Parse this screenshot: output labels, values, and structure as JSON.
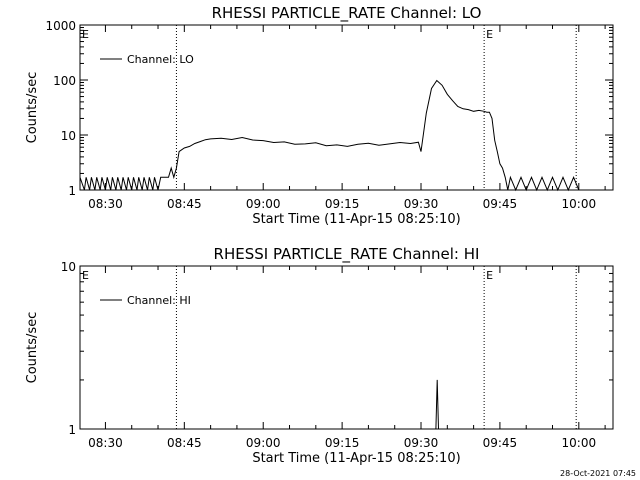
{
  "footer": {
    "timestamp": "28-Oct-2021 07:45"
  },
  "chart_data": [
    {
      "type": "line",
      "title": "RHESSI PARTICLE_RATE Channel: LO",
      "xlabel": "Start Time (11-Apr-15 08:25:10)",
      "ylabel": "Counts/sec",
      "yscale": "log",
      "xlim": [
        "08:25:10",
        "10:06:30"
      ],
      "ylim": [
        1,
        1000
      ],
      "xticks": [
        "08:30",
        "08:45",
        "09:00",
        "09:15",
        "09:30",
        "09:45",
        "10:00"
      ],
      "yticks": [
        "1",
        "10",
        "100",
        "1000"
      ],
      "legend": {
        "label": "Channel: LO",
        "placement": "top-left"
      },
      "vlines": [
        "08:43:30",
        "09:42:00",
        "09:59:30"
      ],
      "markers": [
        {
          "x": "08:25:10",
          "label": "E"
        },
        {
          "x": "09:42:00",
          "label": "E"
        }
      ],
      "series": [
        {
          "name": "Channel: LO",
          "color": "#000000",
          "x": [
            "08:25:10",
            "08:26:00",
            "08:26:20",
            "08:27:00",
            "08:27:20",
            "08:28:00",
            "08:28:20",
            "08:29:00",
            "08:29:20",
            "08:30:00",
            "08:30:20",
            "08:31:00",
            "08:31:20",
            "08:32:00",
            "08:32:20",
            "08:33:00",
            "08:33:20",
            "08:34:00",
            "08:34:20",
            "08:35:00",
            "08:35:20",
            "08:36:00",
            "08:36:20",
            "08:37:00",
            "08:37:20",
            "08:38:00",
            "08:38:20",
            "08:39:00",
            "08:39:20",
            "08:40:00",
            "08:40:30",
            "08:41:00",
            "08:41:30",
            "08:42:00",
            "08:42:30",
            "08:43:00",
            "08:43:30",
            "08:44:00",
            "08:45:00",
            "08:46:00",
            "08:47:00",
            "08:48:00",
            "08:49:00",
            "08:50:00",
            "08:52:00",
            "08:54:00",
            "08:56:00",
            "08:58:00",
            "09:00:00",
            "09:02:00",
            "09:04:00",
            "09:06:00",
            "09:08:00",
            "09:10:00",
            "09:12:00",
            "09:14:00",
            "09:16:00",
            "09:18:00",
            "09:20:00",
            "09:22:00",
            "09:24:00",
            "09:26:00",
            "09:28:00",
            "09:29:30",
            "09:30:00",
            "09:31:00",
            "09:32:00",
            "09:33:00",
            "09:34:00",
            "09:35:00",
            "09:36:00",
            "09:37:00",
            "09:38:00",
            "09:39:00",
            "09:40:00",
            "09:41:00",
            "09:42:00",
            "09:42:30",
            "09:43:00",
            "09:43:30",
            "09:44:00",
            "09:44:30",
            "09:45:00",
            "09:45:30",
            "09:46:00",
            "09:46:30",
            "09:47:00",
            "09:48:00",
            "09:49:00",
            "09:50:00",
            "09:51:00",
            "09:52:00",
            "09:53:00",
            "09:54:00",
            "09:55:00",
            "09:56:00",
            "09:57:00",
            "09:58:00",
            "09:59:00",
            "10:00:00"
          ],
          "values": [
            1.7,
            1.0,
            1.7,
            1.0,
            1.7,
            1.0,
            1.7,
            1.0,
            1.7,
            1.0,
            1.7,
            1.0,
            1.7,
            1.0,
            1.7,
            1.0,
            1.7,
            1.0,
            1.7,
            1.0,
            1.7,
            1.0,
            1.7,
            1.0,
            1.7,
            1.0,
            1.7,
            1.0,
            1.7,
            1.0,
            1.7,
            1.7,
            1.7,
            1.7,
            2.5,
            1.7,
            2.5,
            5.0,
            5.8,
            6.2,
            7.0,
            7.6,
            8.2,
            8.5,
            8.7,
            8.3,
            9.0,
            8.1,
            7.9,
            7.3,
            7.5,
            6.8,
            6.9,
            7.2,
            6.4,
            6.6,
            6.2,
            6.8,
            7.1,
            6.5,
            6.9,
            7.3,
            7.0,
            7.4,
            5.0,
            25,
            70,
            98,
            80,
            55,
            42,
            33,
            30,
            29,
            27,
            28,
            27,
            26,
            26,
            20,
            8,
            5,
            3,
            2.5,
            1.7,
            1.0,
            1.7,
            1.0,
            1.7,
            1.0,
            1.7,
            1.0,
            1.7,
            1.0,
            1.7,
            1.0,
            1.7,
            1.0,
            1.7,
            1.0
          ]
        }
      ]
    },
    {
      "type": "line",
      "title": "RHESSI PARTICLE_RATE Channel: HI",
      "xlabel": "Start Time (11-Apr-15 08:25:10)",
      "ylabel": "Counts/sec",
      "yscale": "log",
      "xlim": [
        "08:25:10",
        "10:06:30"
      ],
      "ylim": [
        1,
        10
      ],
      "xticks": [
        "08:30",
        "08:45",
        "09:00",
        "09:15",
        "09:30",
        "09:45",
        "10:00"
      ],
      "yticks": [
        "1",
        "10"
      ],
      "legend": {
        "label": "Channel: HI",
        "placement": "top-left"
      },
      "vlines": [
        "08:43:30",
        "09:42:00",
        "09:59:30"
      ],
      "markers": [
        {
          "x": "08:25:10",
          "label": "E"
        },
        {
          "x": "09:42:00",
          "label": "E"
        }
      ],
      "series": [
        {
          "name": "Channel: HI",
          "color": "#000000",
          "x": [
            "09:32:50",
            "09:33:05",
            "09:33:20"
          ],
          "values": [
            1.0,
            2.0,
            1.0
          ]
        }
      ]
    }
  ]
}
